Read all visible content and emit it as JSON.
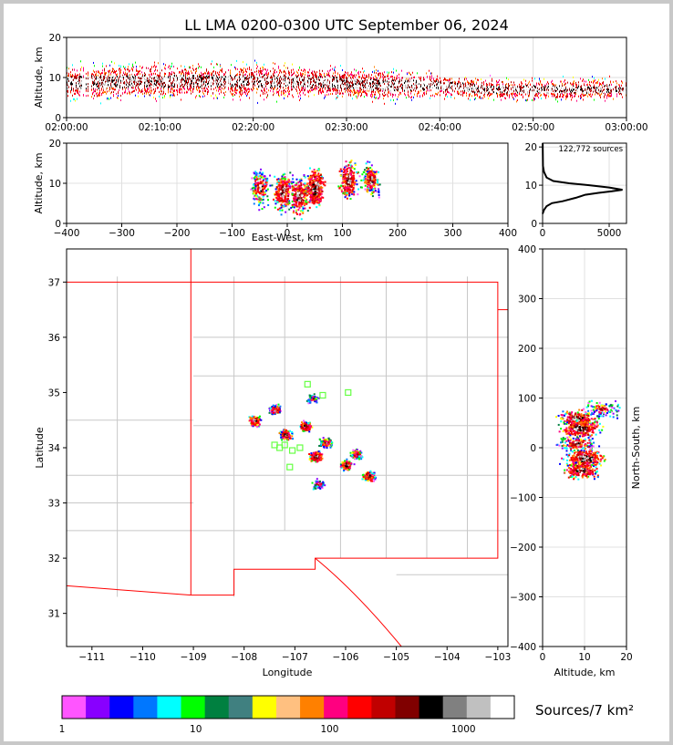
{
  "chart_data": [
    {
      "type": "scatter",
      "panel": "time-altitude",
      "title": "LL LMA 0200-0300 UTC September 06, 2024",
      "ylabel": "Altitude, km",
      "xlabel": "",
      "x_ticks": [
        "02:00:00",
        "02:10:00",
        "02:20:00",
        "02:30:00",
        "02:40:00",
        "02:50:00",
        "03:00:00"
      ],
      "y_ticks": [
        "0",
        "10",
        "20"
      ],
      "xlim": [
        "02:00:00",
        "03:00:00"
      ],
      "ylim": [
        0,
        20
      ],
      "grid": true,
      "source_density_by_time": [
        {
          "t_min": 0,
          "alt_low": 3,
          "alt_high": 16,
          "peak_alt": 8.5
        },
        {
          "t_min": 5,
          "alt_low": 3,
          "alt_high": 16,
          "peak_alt": 9
        },
        {
          "t_min": 10,
          "alt_low": 3,
          "alt_high": 15,
          "peak_alt": 9
        },
        {
          "t_min": 15,
          "alt_low": 3,
          "alt_high": 15,
          "peak_alt": 9
        },
        {
          "t_min": 20,
          "alt_low": 3,
          "alt_high": 16,
          "peak_alt": 9
        },
        {
          "t_min": 25,
          "alt_low": 3,
          "alt_high": 15,
          "peak_alt": 9
        },
        {
          "t_min": 30,
          "alt_low": 3,
          "alt_high": 14,
          "peak_alt": 8.5
        },
        {
          "t_min": 35,
          "alt_low": 3,
          "alt_high": 14,
          "peak_alt": 8
        },
        {
          "t_min": 40,
          "alt_low": 4,
          "alt_high": 13,
          "peak_alt": 8
        },
        {
          "t_min": 45,
          "alt_low": 4,
          "alt_high": 12,
          "peak_alt": 7
        },
        {
          "t_min": 50,
          "alt_low": 4,
          "alt_high": 12,
          "peak_alt": 7
        },
        {
          "t_min": 55,
          "alt_low": 4,
          "alt_high": 12,
          "peak_alt": 7
        },
        {
          "t_min": 60,
          "alt_low": 4,
          "alt_high": 12,
          "peak_alt": 7
        }
      ]
    },
    {
      "type": "heatmap",
      "panel": "east-west-altitude",
      "xlabel": "East-West, km",
      "ylabel": "Altitude, km",
      "x_ticks": [
        "−400",
        "−300",
        "−200",
        "−100",
        "0",
        "100",
        "200",
        "300",
        "400"
      ],
      "y_ticks": [
        "0",
        "10",
        "20"
      ],
      "xlim": [
        -400,
        400
      ],
      "ylim": [
        0,
        20
      ],
      "grid": true,
      "cells": [
        {
          "x_center": -50,
          "alt_center": 9,
          "density": "medium"
        },
        {
          "x_center": -10,
          "alt_center": 8,
          "density": "high"
        },
        {
          "x_center": 20,
          "alt_center": 7,
          "density": "high"
        },
        {
          "x_center": 50,
          "alt_center": 9,
          "density": "peak"
        },
        {
          "x_center": 110,
          "alt_center": 11,
          "density": "high"
        },
        {
          "x_center": 150,
          "alt_center": 11,
          "density": "medium"
        }
      ]
    },
    {
      "type": "line",
      "panel": "altitude-histogram",
      "annotation": "122,772 sources",
      "x_ticks": [
        "0",
        "5000"
      ],
      "y_ticks": [
        "0",
        "10",
        "20"
      ],
      "xlim": [
        0,
        6300
      ],
      "ylim": [
        0,
        21
      ],
      "grid": true,
      "series": [
        {
          "points": [
            [
              0,
              2.5
            ],
            [
              100,
              3.5
            ],
            [
              300,
              4.5
            ],
            [
              700,
              5.3
            ],
            [
              1500,
              5.8
            ],
            [
              2500,
              6.7
            ],
            [
              3200,
              7.5
            ],
            [
              4200,
              8
            ],
            [
              5200,
              8.4
            ],
            [
              6000,
              8.8
            ],
            [
              5000,
              9.4
            ],
            [
              3500,
              10
            ],
            [
              2000,
              10.5
            ],
            [
              800,
              11.1
            ],
            [
              300,
              12
            ],
            [
              100,
              13.5
            ],
            [
              30,
              15
            ],
            [
              10,
              21
            ]
          ]
        }
      ]
    },
    {
      "type": "scatter",
      "panel": "plan-view",
      "xlabel": "Longitude",
      "ylabel": "Latitude",
      "x_ticks": [
        "−111",
        "−110",
        "−109",
        "−108",
        "−107",
        "−106",
        "−105",
        "−104",
        "−103"
      ],
      "y_ticks": [
        "31",
        "32",
        "33",
        "34",
        "35",
        "36",
        "37"
      ],
      "xlim": [
        -111.5,
        -102.8
      ],
      "ylim": [
        30.4,
        37.6
      ],
      "grid": false,
      "clusters": [
        {
          "lon": -107.8,
          "lat": 34.5,
          "density": "high"
        },
        {
          "lon": -107.4,
          "lat": 34.7,
          "density": "medium"
        },
        {
          "lon": -107.2,
          "lat": 34.25,
          "density": "high"
        },
        {
          "lon": -106.8,
          "lat": 34.4,
          "density": "high"
        },
        {
          "lon": -106.6,
          "lat": 33.85,
          "density": "peak"
        },
        {
          "lon": -106.4,
          "lat": 34.1,
          "density": "medium"
        },
        {
          "lon": -106.65,
          "lat": 34.9,
          "density": "low"
        },
        {
          "lon": -106.0,
          "lat": 33.7,
          "density": "high"
        },
        {
          "lon": -105.8,
          "lat": 33.9,
          "density": "medium"
        },
        {
          "lon": -105.55,
          "lat": 33.5,
          "density": "high"
        },
        {
          "lon": -106.55,
          "lat": 33.35,
          "density": "low"
        }
      ],
      "stations": [
        {
          "lon": -106.75,
          "lat": 35.15
        },
        {
          "lon": -106.45,
          "lat": 34.95
        },
        {
          "lon": -105.95,
          "lat": 35.0
        },
        {
          "lon": -107.2,
          "lat": 34.05
        },
        {
          "lon": -107.05,
          "lat": 33.95
        },
        {
          "lon": -106.9,
          "lat": 34.0
        },
        {
          "lon": -107.3,
          "lat": 34.0
        },
        {
          "lon": -107.4,
          "lat": 34.05
        },
        {
          "lon": -107.1,
          "lat": 33.65
        }
      ]
    },
    {
      "type": "heatmap",
      "panel": "altitude-north-south",
      "xlabel": "Altitude, km",
      "ylabel": "North-South, km",
      "x_ticks": [
        "0",
        "10",
        "20"
      ],
      "y_ticks": [
        "−400",
        "−300",
        "−200",
        "−100",
        "0",
        "100",
        "200",
        "300",
        "400"
      ],
      "xlim": [
        0,
        20
      ],
      "ylim": [
        -400,
        400
      ],
      "grid": true,
      "cells": [
        {
          "alt_center": 8,
          "ns_center": 60,
          "density": "high"
        },
        {
          "alt_center": 9,
          "ns_center": 40,
          "density": "peak"
        },
        {
          "alt_center": 8,
          "ns_center": 10,
          "density": "medium"
        },
        {
          "alt_center": 10,
          "ns_center": -20,
          "density": "peak"
        },
        {
          "alt_center": 9,
          "ns_center": -45,
          "density": "high"
        },
        {
          "alt_center": 14,
          "ns_center": 80,
          "density": "low"
        }
      ]
    }
  ],
  "colorbar": {
    "label": "Sources/7 km²",
    "ticks": [
      "1",
      "10",
      "100",
      "1000"
    ],
    "colors": [
      "#ff55ff",
      "#8800ff",
      "#0000ff",
      "#0077ff",
      "#00ffff",
      "#00ff00",
      "#008040",
      "#408080",
      "#ffff00",
      "#ffc080",
      "#ff8000",
      "#ff0080",
      "#ff0000",
      "#c00000",
      "#800000",
      "#000000",
      "#808080",
      "#c0c0c0",
      "#ffffff"
    ]
  },
  "map": {
    "state_border_color": "#ff0000",
    "county_border_color": "#c8c8c8"
  }
}
